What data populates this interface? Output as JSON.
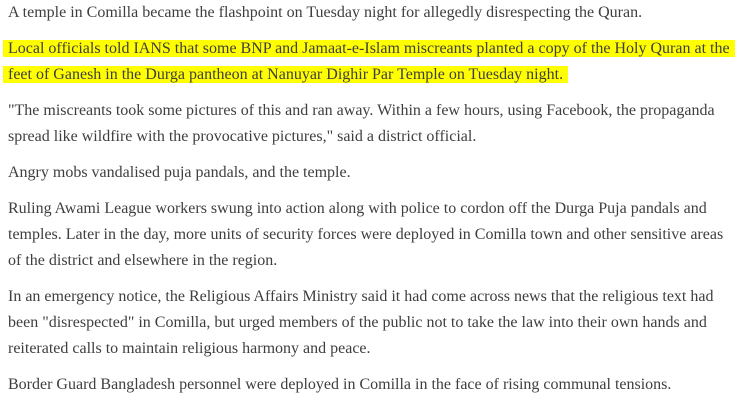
{
  "page": {
    "colors": {
      "text": "#3e3e3e",
      "highlight": "#ffff00",
      "background": "#ffffff"
    }
  },
  "article": {
    "paragraphs": [
      {
        "highlighted": false,
        "text": "A temple in Comilla became the flashpoint on Tuesday night for allegedly disrespecting the Quran."
      },
      {
        "highlighted": true,
        "text": "Local officials told IANS that some BNP and Jamaat-e-Islam miscreants planted a copy of the Holy Quran at the feet of Ganesh in the Durga pantheon at Nanuyar Dighir Par Temple on Tuesday night."
      },
      {
        "highlighted": false,
        "text": "\"The miscreants took some pictures of this and ran away. Within a few hours, using Facebook, the propaganda spread like wildfire with the provocative pictures,\" said a district official."
      },
      {
        "highlighted": false,
        "text": "Angry mobs vandalised puja pandals, and the temple."
      },
      {
        "highlighted": false,
        "text": "Ruling Awami League workers swung into action along with police to cordon off the Durga Puja pandals and temples. Later in the day, more units of security forces were deployed in Comilla town and other sensitive areas of the district and elsewhere in the region."
      },
      {
        "highlighted": false,
        "text": "In an emergency notice, the Religious Affairs Ministry said it had come across news that the religious text had been \"disrespected\" in Comilla, but urged members of the public not to take the law into their own hands and reiterated calls to maintain religious harmony and peace."
      },
      {
        "highlighted": false,
        "text": "Border Guard Bangladesh personnel were deployed in Comilla in the face of rising communal tensions."
      }
    ]
  }
}
